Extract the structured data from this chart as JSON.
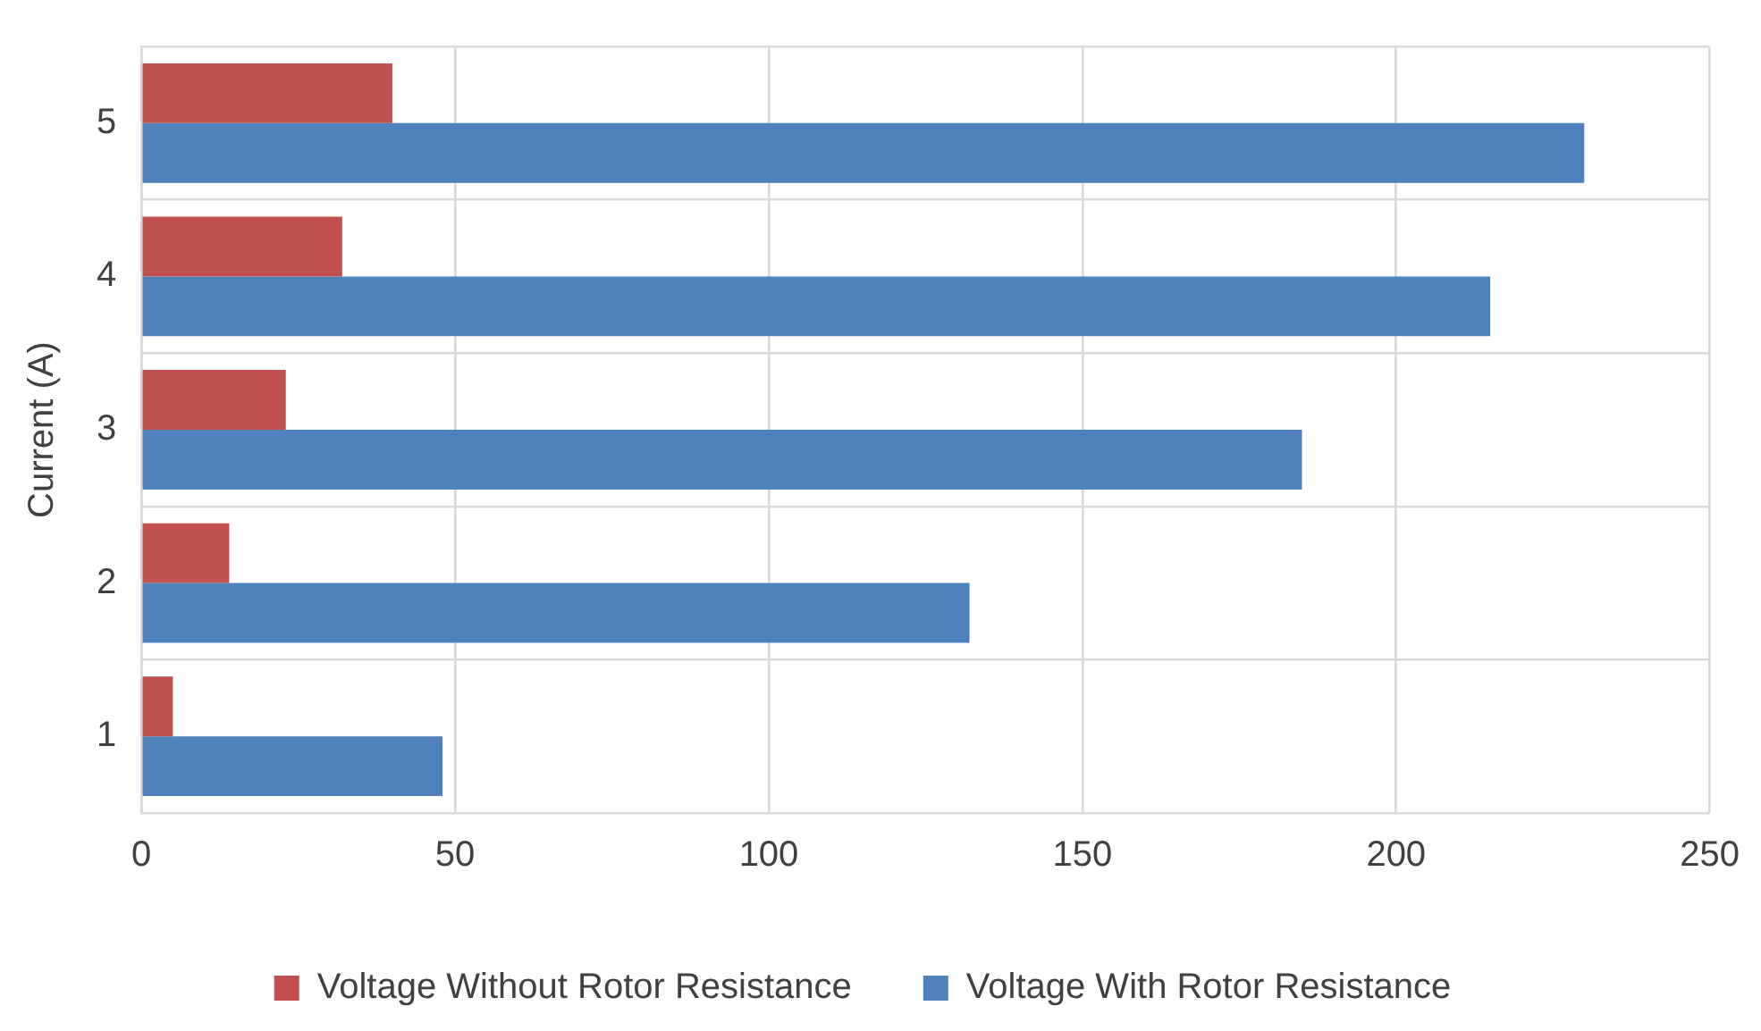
{
  "chart_data": {
    "type": "bar",
    "orientation": "horizontal",
    "ylabel": "Current (A)",
    "categories": [
      "5",
      "4",
      "3",
      "2",
      "1"
    ],
    "series": [
      {
        "name": "Voltage Without Rotor Resistance",
        "color": "#c0504d",
        "values": [
          40,
          32,
          23,
          14,
          5
        ]
      },
      {
        "name": "Voltage With Rotor Resistance",
        "color": "#4f81bd",
        "values": [
          230,
          215,
          185,
          132,
          48
        ]
      }
    ],
    "xlim": [
      0,
      250
    ],
    "xticks": [
      0,
      50,
      100,
      150,
      200,
      250
    ],
    "grid": true,
    "legend": "bottom"
  }
}
